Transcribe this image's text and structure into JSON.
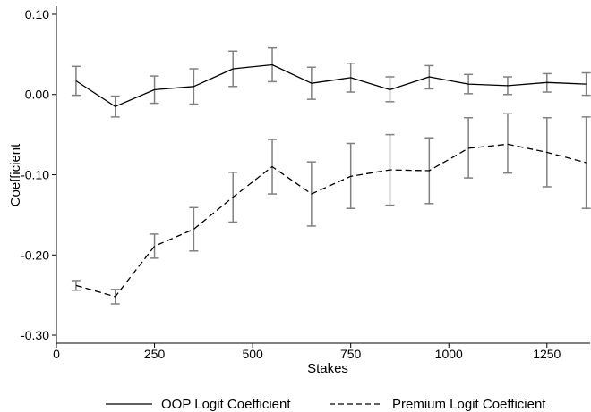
{
  "chart_data": {
    "type": "line",
    "xlabel": "Stakes",
    "ylabel": "Coefficient",
    "xlim": [
      0,
      1360
    ],
    "ylim": [
      -0.31,
      0.11
    ],
    "xticks": [
      0,
      250,
      500,
      750,
      1000,
      1250
    ],
    "xtick_labels": [
      "0",
      "250",
      "500",
      "750",
      "1000",
      "1250"
    ],
    "yticks": [
      0.1,
      0.0,
      -0.1,
      -0.2,
      -0.3
    ],
    "ytick_labels": [
      "0.10",
      "0.00",
      "-0.10",
      "-0.20",
      "-0.30"
    ],
    "grid": false,
    "legend_position": "bottom",
    "x": [
      50,
      150,
      250,
      350,
      450,
      550,
      650,
      750,
      850,
      950,
      1050,
      1150,
      1250,
      1350
    ],
    "series": [
      {
        "name": "OOP Logit Coefficient",
        "style": "solid",
        "values": [
          0.017,
          -0.015,
          0.006,
          0.01,
          0.032,
          0.037,
          0.014,
          0.021,
          0.006,
          0.022,
          0.013,
          0.011,
          0.015,
          0.013
        ],
        "ci_low": [
          -0.001,
          -0.028,
          -0.011,
          -0.012,
          0.01,
          0.016,
          -0.006,
          0.003,
          -0.009,
          0.007,
          0.001,
          0.0,
          0.003,
          -0.001
        ],
        "ci_high": [
          0.035,
          -0.002,
          0.023,
          0.032,
          0.054,
          0.058,
          0.034,
          0.039,
          0.022,
          0.036,
          0.025,
          0.022,
          0.026,
          0.027
        ]
      },
      {
        "name": "Premium Logit Coefficient",
        "style": "dashed",
        "values": [
          -0.238,
          -0.252,
          -0.189,
          -0.168,
          -0.128,
          -0.09,
          -0.124,
          -0.102,
          -0.094,
          -0.095,
          -0.067,
          -0.062,
          -0.072,
          -0.085
        ],
        "ci_low": [
          -0.244,
          -0.261,
          -0.204,
          -0.195,
          -0.159,
          -0.124,
          -0.164,
          -0.142,
          -0.138,
          -0.136,
          -0.104,
          -0.098,
          -0.115,
          -0.142
        ],
        "ci_high": [
          -0.232,
          -0.243,
          -0.174,
          -0.141,
          -0.097,
          -0.056,
          -0.084,
          -0.061,
          -0.05,
          -0.054,
          -0.029,
          -0.024,
          -0.029,
          -0.028
        ]
      }
    ],
    "errorbar_color": "#808080"
  }
}
